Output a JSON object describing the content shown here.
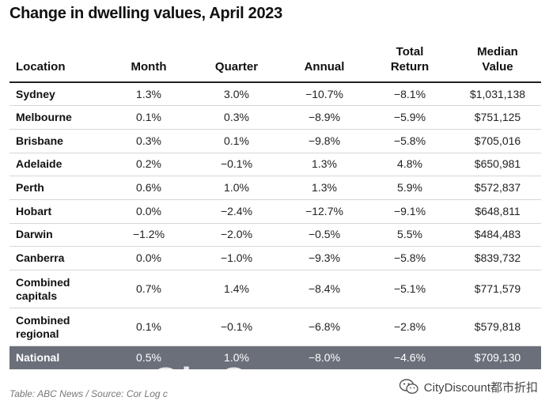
{
  "title": "Change in dwelling values, April 2023",
  "table": {
    "headers": {
      "location": "Location",
      "month": "Month",
      "quarter": "Quarter",
      "annual": "Annual",
      "total_return_1": "Total",
      "total_return_2": "Return",
      "median_value_1": "Median",
      "median_value_2": "Value"
    },
    "rows": [
      {
        "location": "Sydney",
        "month": "1.3%",
        "quarter": "3.0%",
        "annual": "−10.7%",
        "total_return": "−8.1%",
        "median_value": "$1,031,138"
      },
      {
        "location": "Melbourne",
        "month": "0.1%",
        "quarter": "0.3%",
        "annual": "−8.9%",
        "total_return": "−5.9%",
        "median_value": "$751,125"
      },
      {
        "location": "Brisbane",
        "month": "0.3%",
        "quarter": "0.1%",
        "annual": "−9.8%",
        "total_return": "−5.8%",
        "median_value": "$705,016"
      },
      {
        "location": "Adelaide",
        "month": "0.2%",
        "quarter": "−0.1%",
        "annual": "1.3%",
        "total_return": "4.8%",
        "median_value": "$650,981"
      },
      {
        "location": "Perth",
        "month": "0.6%",
        "quarter": "1.0%",
        "annual": "1.3%",
        "total_return": "5.9%",
        "median_value": "$572,837"
      },
      {
        "location": "Hobart",
        "month": "0.0%",
        "quarter": "−2.4%",
        "annual": "−12.7%",
        "total_return": "−9.1%",
        "median_value": "$648,811"
      },
      {
        "location": "Darwin",
        "month": "−1.2%",
        "quarter": "−2.0%",
        "annual": "−0.5%",
        "total_return": "5.5%",
        "median_value": "$484,483"
      },
      {
        "location": "Canberra",
        "month": "0.0%",
        "quarter": "−1.0%",
        "annual": "−9.3%",
        "total_return": "−5.8%",
        "median_value": "$839,732"
      }
    ],
    "combined_capitals": {
      "location_1": "Combined",
      "location_2": "capitals",
      "month": "0.7%",
      "quarter": "1.4%",
      "annual": "−8.4%",
      "total_return": "−5.1%",
      "median_value": "$771,579"
    },
    "combined_regional": {
      "location_1": "Combined",
      "location_2": "regional",
      "month": "0.1%",
      "quarter": "−0.1%",
      "annual": "−6.8%",
      "total_return": "−2.8%",
      "median_value": "$579,818"
    },
    "national": {
      "location": "National",
      "month": "0.5%",
      "quarter": "1.0%",
      "annual": "−8.0%",
      "total_return": "−4.6%",
      "median_value": "$709,130"
    }
  },
  "footer": "Table: ABC News / Source: Cor  Log c",
  "watermark": {
    "text": "CityDiscount都市折扣",
    "icon": "wechat-icon"
  },
  "overlay_text": "Ch      C"
}
